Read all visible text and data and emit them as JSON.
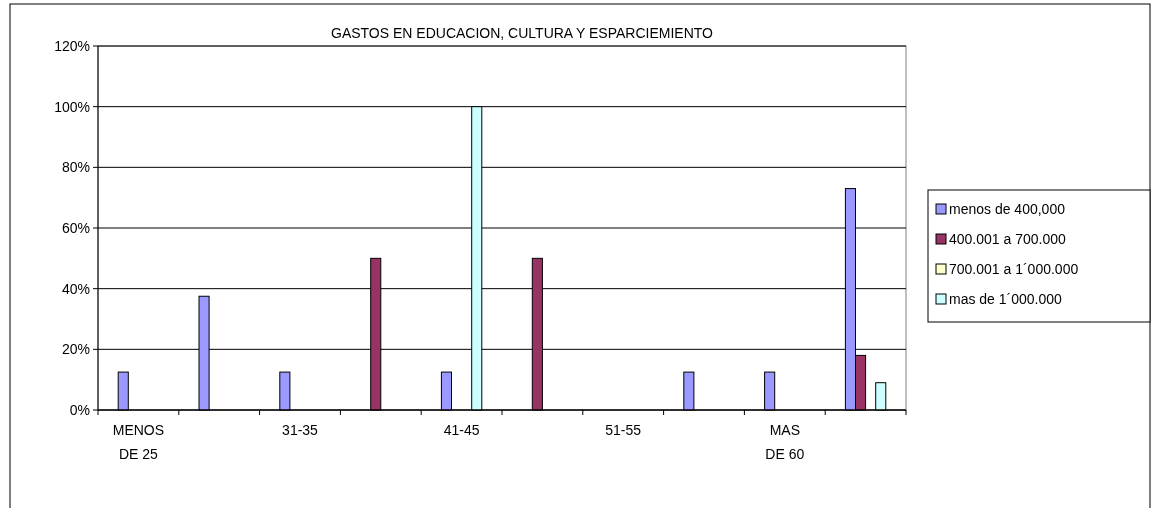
{
  "chart_data": {
    "type": "bar",
    "title": "GASTOS EN EDUCACION, CULTURA Y ESPARCIEMIENTO",
    "categories": [
      "MENOS DE 25",
      null,
      "31-35",
      null,
      "41-45",
      null,
      "51-55",
      null,
      "MAS DE 60",
      null
    ],
    "series": [
      {
        "name": "menos de 400,000",
        "color": "#9999ff",
        "values": [
          12.5,
          37.5,
          12.5,
          null,
          12.5,
          null,
          null,
          12.5,
          12.5,
          73
        ]
      },
      {
        "name": "400.001 a 700.000",
        "color": "#993366",
        "values": [
          null,
          null,
          null,
          50,
          null,
          50,
          null,
          null,
          null,
          18
        ]
      },
      {
        "name": "700.001 a 1´000.000",
        "color": "#ffffcc",
        "values": [
          null,
          null,
          null,
          null,
          null,
          null,
          null,
          null,
          null,
          null
        ]
      },
      {
        "name": "mas de 1´000.000",
        "color": "#ccffff",
        "values": [
          null,
          null,
          null,
          null,
          100,
          null,
          null,
          null,
          null,
          9
        ]
      }
    ],
    "ylim": [
      0,
      120
    ],
    "yticks": [
      {
        "value": 0,
        "label": "0%"
      },
      {
        "value": 20,
        "label": "20%"
      },
      {
        "value": 40,
        "label": "40%"
      },
      {
        "value": 60,
        "label": "60%"
      },
      {
        "value": 80,
        "label": "80%"
      },
      {
        "value": 100,
        "label": "100%"
      },
      {
        "value": 120,
        "label": "120%"
      }
    ],
    "grid": "y",
    "legend": "right"
  }
}
